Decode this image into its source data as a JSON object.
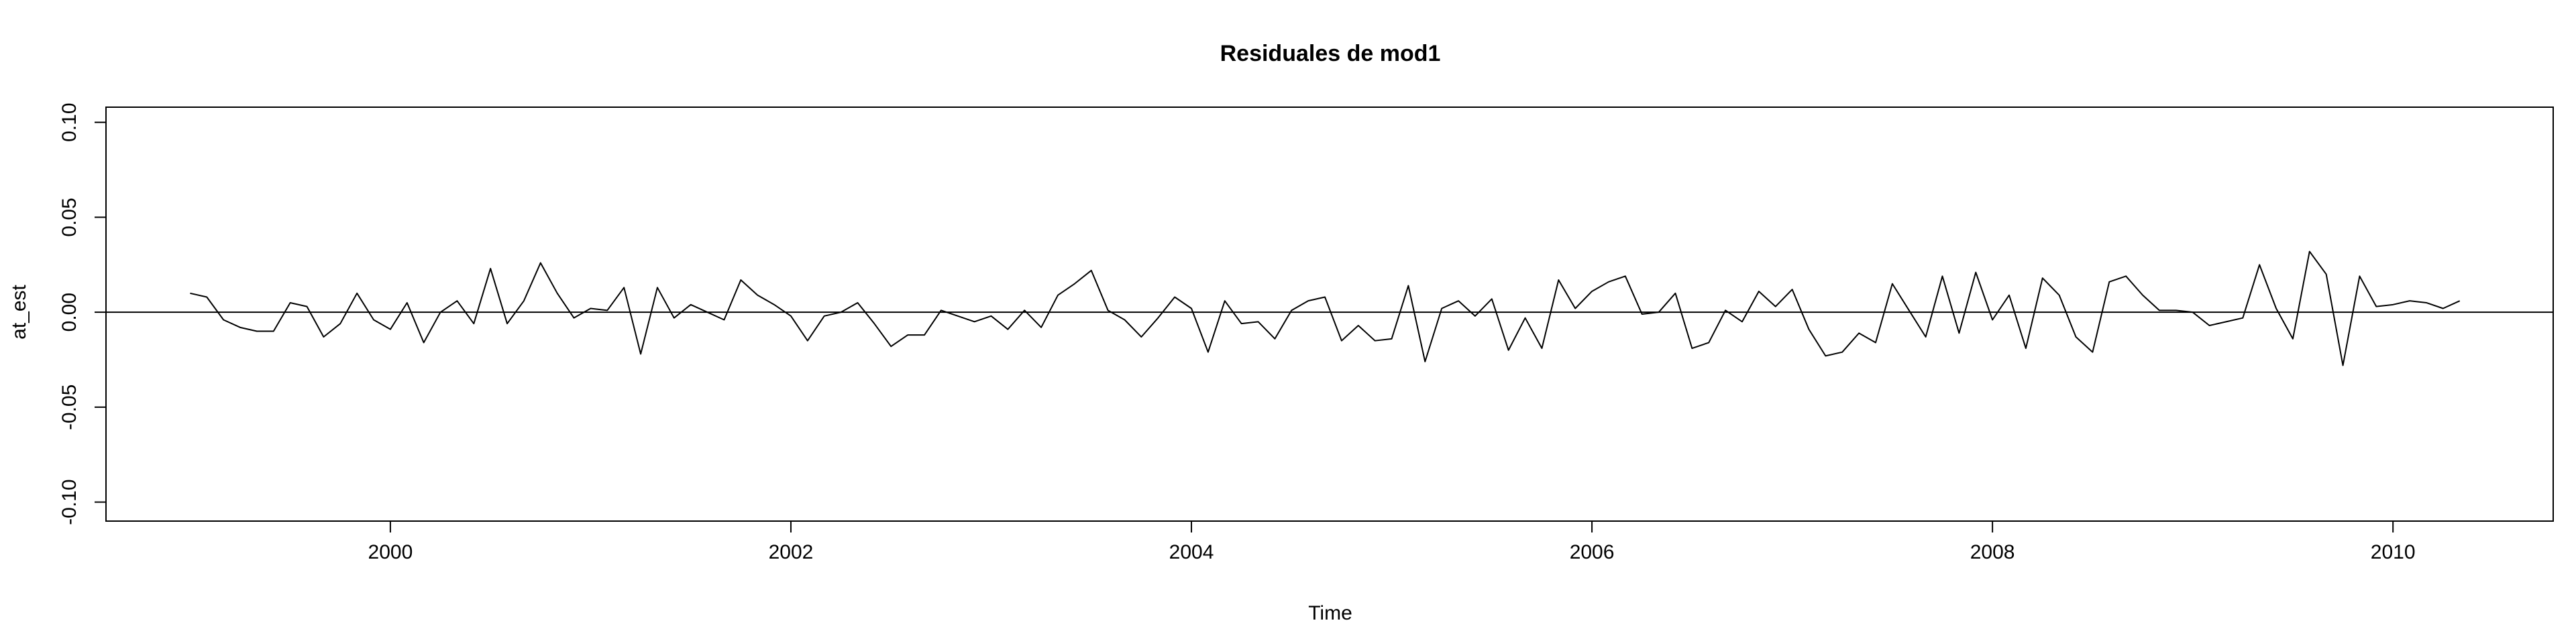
{
  "chart_data": {
    "type": "line",
    "title": "Residuales de mod1",
    "xlabel": "Time",
    "ylabel": "at_est",
    "xlim": [
      1998.58,
      2010.8
    ],
    "ylim": [
      -0.11,
      0.108
    ],
    "x_ticks": [
      2000,
      2002,
      2004,
      2006,
      2008,
      2010
    ],
    "x_tick_labels": [
      "2000",
      "2002",
      "2004",
      "2006",
      "2008",
      "2010"
    ],
    "y_ticks": [
      -0.1,
      -0.05,
      0.0,
      0.05,
      0.1
    ],
    "y_tick_labels": [
      "-0.10",
      "-0.05",
      "0.00",
      "0.05",
      "0.10"
    ],
    "hline": 0,
    "grid": false,
    "series": [
      {
        "start": 1999.0,
        "frequency": 12,
        "values": [
          0.01,
          0.008,
          -0.004,
          -0.008,
          -0.01,
          -0.01,
          0.005,
          0.003,
          -0.013,
          -0.006,
          0.01,
          -0.004,
          -0.009,
          0.005,
          -0.016,
          0.0,
          0.006,
          -0.006,
          0.023,
          -0.006,
          0.006,
          0.026,
          0.01,
          -0.003,
          0.002,
          0.001,
          0.013,
          -0.022,
          0.013,
          -0.003,
          0.004,
          0.0,
          -0.004,
          0.017,
          0.009,
          0.004,
          -0.002,
          -0.015,
          -0.002,
          0.0,
          0.005,
          -0.006,
          -0.018,
          -0.012,
          -0.012,
          0.001,
          -0.002,
          -0.005,
          -0.002,
          -0.009,
          0.001,
          -0.008,
          0.009,
          0.015,
          0.022,
          0.001,
          -0.004,
          -0.013,
          -0.003,
          0.008,
          0.002,
          -0.021,
          0.006,
          -0.006,
          -0.005,
          -0.014,
          0.001,
          0.006,
          0.008,
          -0.015,
          -0.007,
          -0.015,
          -0.014,
          0.014,
          -0.026,
          0.002,
          0.006,
          -0.002,
          0.007,
          -0.02,
          -0.003,
          -0.019,
          0.017,
          0.002,
          0.011,
          0.016,
          0.019,
          -0.001,
          0.0,
          0.01,
          -0.019,
          -0.016,
          0.001,
          -0.005,
          0.011,
          0.003,
          0.012,
          -0.009,
          -0.023,
          -0.021,
          -0.011,
          -0.016,
          0.015,
          0.001,
          -0.013,
          0.019,
          -0.011,
          0.021,
          -0.004,
          0.009,
          -0.019,
          0.018,
          0.009,
          -0.013,
          -0.021,
          0.016,
          0.019,
          0.009,
          0.001,
          0.001,
          0.0,
          -0.007,
          -0.005,
          -0.003,
          0.025,
          0.002,
          -0.014,
          0.032,
          0.02,
          -0.028,
          0.019,
          0.003,
          0.004,
          0.006,
          0.005,
          0.002,
          0.006
        ]
      }
    ]
  }
}
